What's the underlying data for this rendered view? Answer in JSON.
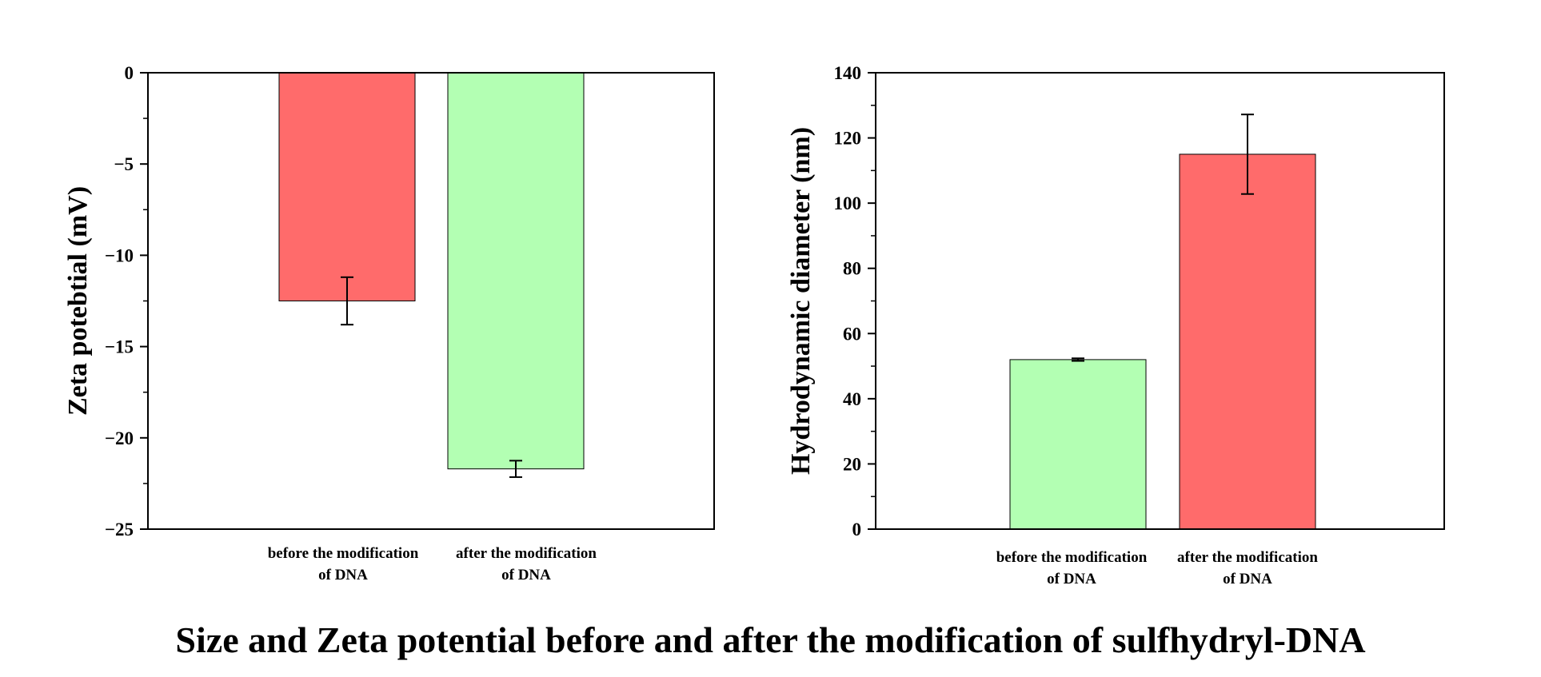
{
  "caption": "Size and Zeta potential before and after the modification of sulfhydryl-DNA",
  "colors": {
    "red": "#ff6b6b",
    "green": "#b3ffb3"
  },
  "chart_data": [
    {
      "type": "bar",
      "ylabel": "Zeta potebtial (mV)",
      "ylim": [
        -25,
        0
      ],
      "yticks": [
        0,
        -5,
        -10,
        -15,
        -20,
        -25
      ],
      "ytick_labels": [
        "0",
        "−5",
        "−10",
        "−15",
        "−20",
        "−25"
      ],
      "categories": [
        [
          "before the modification",
          "of DNA"
        ],
        [
          "after the modification",
          "of DNA"
        ]
      ],
      "values": [
        -12.5,
        -21.7
      ],
      "errors": [
        1.3,
        0.45
      ],
      "bar_colors": [
        "#ff6b6b",
        "#b3ffb3"
      ],
      "grid": false
    },
    {
      "type": "bar",
      "ylabel": "Hydrodynamic diameter (nm)",
      "ylim": [
        0,
        140
      ],
      "yticks": [
        0,
        20,
        40,
        60,
        80,
        100,
        120,
        140
      ],
      "ytick_labels": [
        "0",
        "20",
        "40",
        "60",
        "80",
        "100",
        "120",
        "140"
      ],
      "categories": [
        [
          "before the modification",
          "of DNA"
        ],
        [
          "after the modification",
          "of DNA"
        ]
      ],
      "values": [
        52,
        115
      ],
      "errors": [
        0.4,
        12.2
      ],
      "bar_colors": [
        "#b3ffb3",
        "#ff6b6b"
      ],
      "grid": false
    }
  ]
}
